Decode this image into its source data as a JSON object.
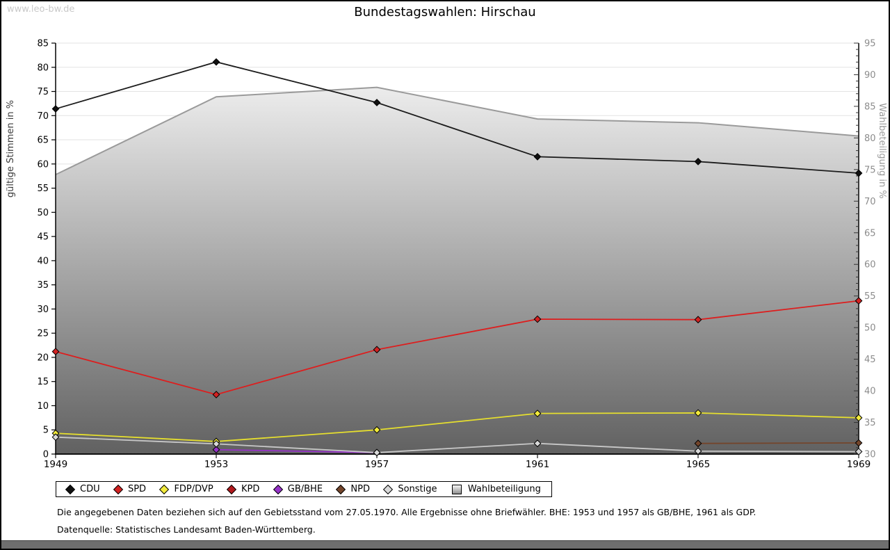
{
  "watermark": "www.leo-bw.de",
  "title": "Bundestagswahlen: Hirschau",
  "footnotes": [
    "Die angegebenen Daten beziehen sich auf den Gebietsstand vom 27.05.1970. Alle Ergebnisse ohne Briefwähler. BHE: 1953 und 1957 als GB/BHE, 1961 als GDP.",
    "Datenquelle: Statistisches Landesamt Baden-Württemberg."
  ],
  "chart_data": {
    "type": "line",
    "x": [
      1949,
      1953,
      1957,
      1961,
      1965,
      1969
    ],
    "left_axis": {
      "label": "gültige Stimmen in %",
      "min": 0,
      "max": 85,
      "step": 5
    },
    "right_axis": {
      "label": "Wahlbeteiligung in %",
      "min": 30,
      "max": 95,
      "step": 5,
      "minor_step": 1
    },
    "grid": "horizontal",
    "series": [
      {
        "name": "CDU",
        "color": "#1c1c1c",
        "marker": "#111111",
        "z": 7,
        "values": [
          71.4,
          81.1,
          72.7,
          61.5,
          60.5,
          58.1
        ]
      },
      {
        "name": "SPD",
        "color": "#dd1e1e",
        "marker": "#d32222",
        "z": 6,
        "values": [
          21.2,
          12.3,
          21.6,
          27.9,
          27.8,
          31.7
        ]
      },
      {
        "name": "FDP/DVP",
        "color": "#e6df2e",
        "marker": "#f3eb3c",
        "z": 4,
        "values": [
          4.3,
          2.6,
          5.0,
          8.4,
          8.5,
          7.5
        ]
      },
      {
        "name": "KPD",
        "color": "#b3191d",
        "marker": "#b3191d",
        "z": 3,
        "values": [
          null,
          null,
          null,
          null,
          null,
          null
        ]
      },
      {
        "name": "GB/BHE",
        "color": "#9632c8",
        "marker": "#9632c8",
        "z": 1,
        "values": [
          null,
          0.9,
          0.3,
          null,
          null,
          null
        ]
      },
      {
        "name": "NPD",
        "color": "#74452b",
        "marker": "#74452b",
        "z": 2,
        "values": [
          null,
          null,
          null,
          null,
          2.2,
          2.3
        ]
      },
      {
        "name": "Sonstige",
        "color": "#c8c8c8",
        "marker": "#d9d9d9",
        "z": 5,
        "values": [
          3.5,
          2.1,
          0.3,
          2.2,
          0.6,
          0.5
        ]
      }
    ],
    "turnout": {
      "name": "Wahlbeteiligung",
      "axis": "right",
      "values": [
        74.2,
        86.5,
        88.0,
        83.0,
        82.4,
        80.3
      ],
      "line_color": "#9a9a9a",
      "fill_top": "#fdfdfd",
      "fill_bottom": "#616161"
    },
    "legend": [
      {
        "label": "CDU",
        "shape": "diamond",
        "color": "#111111"
      },
      {
        "label": "SPD",
        "shape": "diamond",
        "color": "#d32222"
      },
      {
        "label": "FDP/DVP",
        "shape": "diamond",
        "color": "#f3eb3c"
      },
      {
        "label": "KPD",
        "shape": "diamond",
        "color": "#b3191d"
      },
      {
        "label": "GB/BHE",
        "shape": "diamond",
        "color": "#9632c8"
      },
      {
        "label": "NPD",
        "shape": "diamond",
        "color": "#74452b"
      },
      {
        "label": "Sonstige",
        "shape": "diamond",
        "color": "#d9d9d9"
      },
      {
        "label": "Wahlbeteiligung",
        "shape": "square",
        "color": "#bdbdbd"
      }
    ]
  }
}
